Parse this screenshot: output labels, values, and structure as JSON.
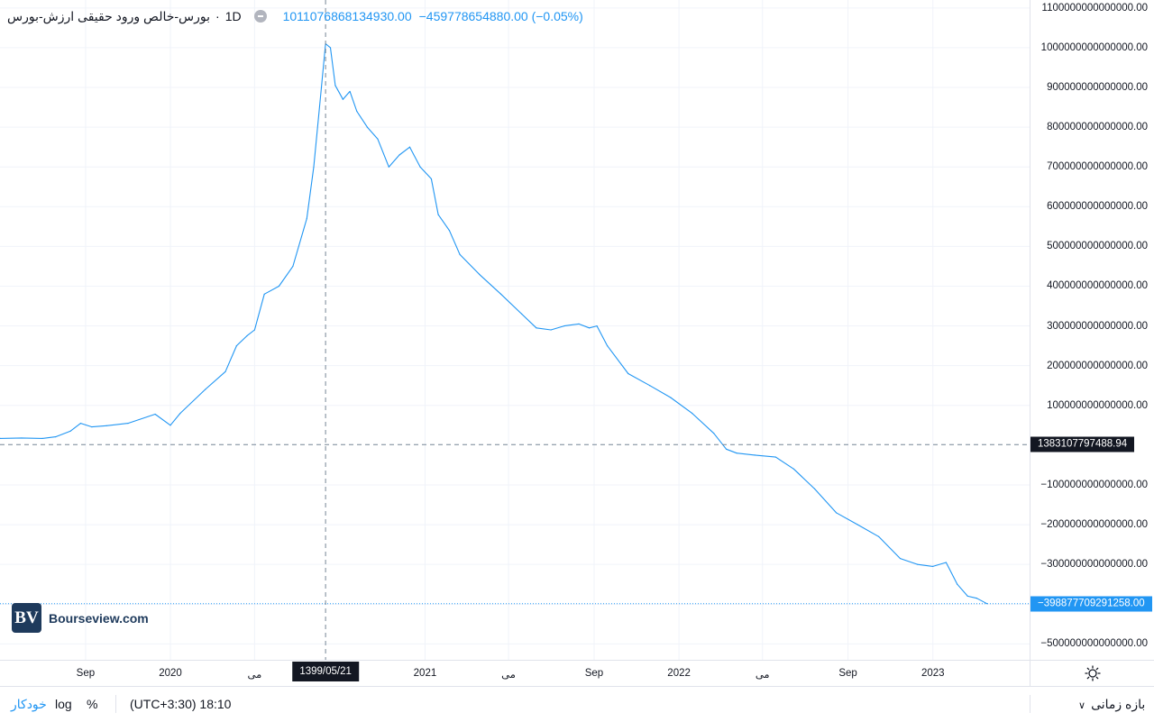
{
  "legend": {
    "title": "بورس-خالص ورود حقیقی ارزش-بورس",
    "separator": "·",
    "interval": "1D",
    "value": "1011076868134930.00",
    "change": "−459778654880.00 (−0.05%)"
  },
  "watermark": {
    "logo_text": "BV",
    "text": "Bourseview.com"
  },
  "crosshair": {
    "price_label": "1383107797488.94",
    "date_label": "1399/05/21"
  },
  "last_price": {
    "label": "−398877709291258.00",
    "color": "#2196f3"
  },
  "bottom_bar": {
    "auto": "خودکار",
    "log": "log",
    "percent": "%",
    "timezone": "(UTC+3:30) 18:10",
    "range": "بازه زمانی"
  },
  "colors": {
    "line": "#2196f3",
    "grid": "#f0f3fa",
    "crosshair": "#758696"
  },
  "chart_data": {
    "type": "line",
    "y_unit_note": "",
    "ylim": [
      -540000000000000,
      1120000000000000
    ],
    "y_ticks": [
      {
        "value": 1100000000000000,
        "label": "1100000000000000.00"
      },
      {
        "value": 1000000000000000,
        "label": "1000000000000000.00"
      },
      {
        "value": 900000000000000,
        "label": "900000000000000.00"
      },
      {
        "value": 800000000000000,
        "label": "800000000000000.00"
      },
      {
        "value": 700000000000000,
        "label": "700000000000000.00"
      },
      {
        "value": 600000000000000,
        "label": "600000000000000.00"
      },
      {
        "value": 500000000000000,
        "label": "500000000000000.00"
      },
      {
        "value": 400000000000000,
        "label": "400000000000000.00"
      },
      {
        "value": 300000000000000,
        "label": "300000000000000.00"
      },
      {
        "value": 200000000000000,
        "label": "200000000000000.00"
      },
      {
        "value": 100000000000000,
        "label": "100000000000000.00"
      },
      {
        "value": -100000000000000,
        "label": "−100000000000000.00"
      },
      {
        "value": -200000000000000,
        "label": "−200000000000000.00"
      },
      {
        "value": -300000000000000,
        "label": "−300000000000000.00"
      },
      {
        "value": -400000000000000,
        "label": "−400000000000000.00"
      },
      {
        "value": -500000000000000,
        "label": "−500000000000000.00"
      }
    ],
    "x_range": [
      "2019-05-01",
      "2023-05-20"
    ],
    "x_ticks": [
      {
        "date": "2019-09-01",
        "label": "Sep"
      },
      {
        "date": "2020-01-01",
        "label": "2020"
      },
      {
        "date": "2020-05-01",
        "label": "می"
      },
      {
        "date": "2021-01-01",
        "label": "2021"
      },
      {
        "date": "2021-05-01",
        "label": "می"
      },
      {
        "date": "2021-09-01",
        "label": "Sep"
      },
      {
        "date": "2022-01-01",
        "label": "2022"
      },
      {
        "date": "2022-05-01",
        "label": "می"
      },
      {
        "date": "2022-09-01",
        "label": "Sep"
      },
      {
        "date": "2023-01-01",
        "label": "2023"
      }
    ],
    "crosshair_x": "2020-08-11",
    "crosshair_y": 1383107797488.94,
    "grid": true,
    "series": [
      {
        "name": "",
        "points": [
          [
            "2019-05-01",
            17000000000000
          ],
          [
            "2019-06-01",
            18000000000000
          ],
          [
            "2019-07-01",
            17000000000000
          ],
          [
            "2019-07-20",
            21000000000000
          ],
          [
            "2019-08-10",
            35000000000000
          ],
          [
            "2019-08-25",
            55000000000000
          ],
          [
            "2019-09-10",
            46000000000000
          ],
          [
            "2019-10-01",
            49000000000000
          ],
          [
            "2019-11-01",
            55000000000000
          ],
          [
            "2019-12-10",
            78000000000000
          ],
          [
            "2020-01-01",
            50000000000000
          ],
          [
            "2020-01-15",
            80000000000000
          ],
          [
            "2020-02-20",
            140000000000000
          ],
          [
            "2020-03-20",
            185000000000000
          ],
          [
            "2020-04-05",
            250000000000000
          ],
          [
            "2020-04-20",
            275000000000000
          ],
          [
            "2020-05-01",
            290000000000000
          ],
          [
            "2020-05-15",
            380000000000000
          ],
          [
            "2020-06-05",
            400000000000000
          ],
          [
            "2020-06-25",
            450000000000000
          ],
          [
            "2020-07-15",
            570000000000000
          ],
          [
            "2020-07-25",
            700000000000000
          ],
          [
            "2020-08-05",
            900000000000000
          ],
          [
            "2020-08-11",
            1010000000000000
          ],
          [
            "2020-08-18",
            1000000000000000
          ],
          [
            "2020-08-25",
            905000000000000
          ],
          [
            "2020-09-05",
            870000000000000
          ],
          [
            "2020-09-15",
            890000000000000
          ],
          [
            "2020-09-25",
            840000000000000
          ],
          [
            "2020-10-10",
            800000000000000
          ],
          [
            "2020-10-25",
            770000000000000
          ],
          [
            "2020-11-10",
            700000000000000
          ],
          [
            "2020-11-25",
            730000000000000
          ],
          [
            "2020-12-10",
            750000000000000
          ],
          [
            "2020-12-25",
            700000000000000
          ],
          [
            "2021-01-10",
            670000000000000
          ],
          [
            "2021-01-20",
            580000000000000
          ],
          [
            "2021-02-05",
            540000000000000
          ],
          [
            "2021-02-20",
            480000000000000
          ],
          [
            "2021-03-20",
            430000000000000
          ],
          [
            "2021-04-20",
            380000000000000
          ],
          [
            "2021-05-20",
            330000000000000
          ],
          [
            "2021-06-10",
            295000000000000
          ],
          [
            "2021-07-01",
            290000000000000
          ],
          [
            "2021-07-20",
            300000000000000
          ],
          [
            "2021-08-10",
            305000000000000
          ],
          [
            "2021-08-25",
            295000000000000
          ],
          [
            "2021-09-05",
            300000000000000
          ],
          [
            "2021-09-20",
            250000000000000
          ],
          [
            "2021-10-20",
            180000000000000
          ],
          [
            "2021-11-20",
            150000000000000
          ],
          [
            "2021-12-20",
            120000000000000
          ],
          [
            "2022-01-20",
            80000000000000
          ],
          [
            "2022-02-20",
            30000000000000
          ],
          [
            "2022-03-10",
            -10000000000000
          ],
          [
            "2022-03-25",
            -20000000000000
          ],
          [
            "2022-04-20",
            -25000000000000
          ],
          [
            "2022-05-20",
            -30000000000000
          ],
          [
            "2022-06-15",
            -60000000000000
          ],
          [
            "2022-07-15",
            -110000000000000
          ],
          [
            "2022-08-15",
            -170000000000000
          ],
          [
            "2022-09-15",
            -200000000000000
          ],
          [
            "2022-10-15",
            -230000000000000
          ],
          [
            "2022-11-15",
            -285000000000000
          ],
          [
            "2022-12-10",
            -300000000000000
          ],
          [
            "2023-01-01",
            -305000000000000
          ],
          [
            "2023-01-20",
            -295000000000000
          ],
          [
            "2023-02-05",
            -350000000000000
          ],
          [
            "2023-02-20",
            -380000000000000
          ],
          [
            "2023-03-05",
            -385000000000000
          ],
          [
            "2023-03-20",
            -398877709291258
          ]
        ]
      }
    ]
  }
}
